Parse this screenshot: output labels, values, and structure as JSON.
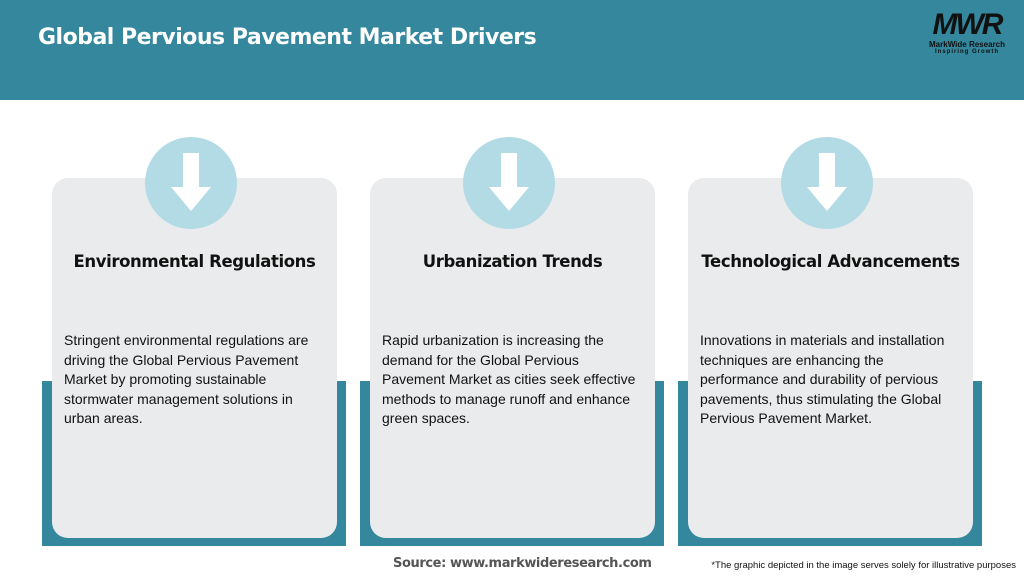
{
  "header": {
    "title": "Global Pervious Pavement Market Drivers",
    "logo": {
      "mark": "MWR",
      "name": "MarkWide Research",
      "tagline": "Inspiring Growth"
    }
  },
  "colors": {
    "header": "#34879d",
    "card": "#e9ebec",
    "circle": "#b3dbe6"
  },
  "cards": [
    {
      "icon": "arrow-down-icon",
      "title": "Environmental Regulations",
      "body": "Stringent environmental regulations are driving the Global Pervious Pavement Market by promoting sustainable stormwater management solutions in urban areas."
    },
    {
      "icon": "arrow-down-icon",
      "title": "Urbanization Trends",
      "body": "Rapid urbanization is increasing the demand for the Global Pervious Pavement Market as cities seek effective methods to manage runoff and enhance green spaces."
    },
    {
      "icon": "arrow-down-icon",
      "title": "Technological Advancements",
      "body": "Innovations in materials and installation techniques are enhancing the performance and durability of pervious pavements, thus stimulating the Global Pervious Pavement Market."
    }
  ],
  "footer": {
    "source": "Source: www.markwideresearch.com",
    "note": "*The graphic depicted in the image serves solely for illustrative purposes"
  }
}
